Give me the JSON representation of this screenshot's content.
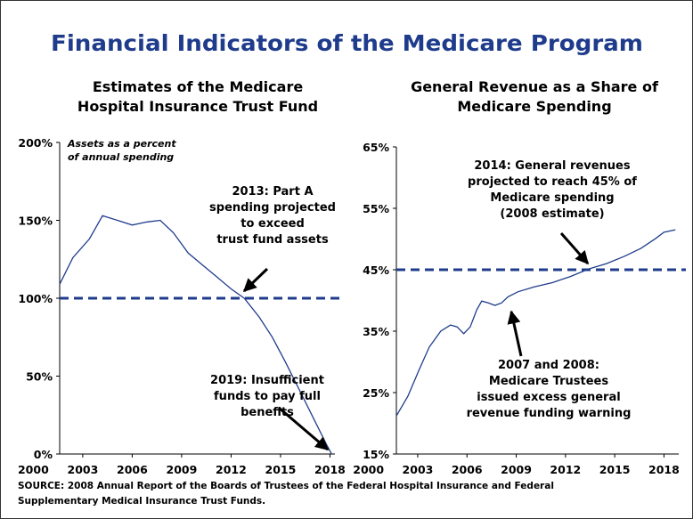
{
  "title": "Financial Indicators of the Medicare Program",
  "source": [
    "SOURCE: 2008 Annual Report of the Boards of Trustees of the Federal Hospital Insurance and Federal",
    "Supplementary Medical Insurance Trust Funds."
  ],
  "chart_data": [
    {
      "type": "line",
      "title": [
        "Estimates of the Medicare",
        "Hospital Insurance Trust Fund"
      ],
      "axis_note": [
        "Assets as a percent",
        "of annual spending"
      ],
      "x": [
        2001.6,
        2002.4,
        2003.4,
        2004.2,
        2005.1,
        2006,
        2006.9,
        2007.7,
        2008.5,
        2009.4,
        2010.3,
        2011.1,
        2012,
        2012.8,
        2013.7,
        2014.5,
        2015.3,
        2016.2,
        2017,
        2017.8,
        2018.1
      ],
      "values": [
        109,
        126,
        138,
        153,
        150,
        147,
        149,
        150,
        142,
        129,
        121,
        114,
        106,
        100,
        88,
        75,
        59,
        40,
        23,
        6,
        0
      ],
      "color": "#1f3c8c",
      "reference_line": 100,
      "xlim": [
        2001.6,
        2018.3
      ],
      "xticks": [
        2000,
        2003,
        2006,
        2009,
        2012,
        2015,
        2018
      ],
      "ylim": [
        0,
        200
      ],
      "yticks": [
        {
          "value": 0,
          "label": "0%"
        },
        {
          "value": 50,
          "label": "50%"
        },
        {
          "value": 100,
          "label": "100%"
        },
        {
          "value": 150,
          "label": "150%"
        },
        {
          "value": 200,
          "label": "200%"
        }
      ],
      "annotations": [
        [
          "2013:  Part A",
          "spending projected",
          "to exceed",
          "trust fund assets"
        ],
        [
          "2019:  Insufficient",
          "funds to pay full",
          "benefits"
        ]
      ]
    },
    {
      "type": "line",
      "title": [
        "General Revenue as a Share of",
        "Medicare Spending"
      ],
      "x": [
        2001.7,
        2002.4,
        2003.1,
        2003.7,
        2004.4,
        2005,
        2005.4,
        2005.8,
        2006.2,
        2006.6,
        2006.9,
        2007.3,
        2007.7,
        2008.1,
        2008.5,
        2009.1,
        2010.1,
        2011.2,
        2012.3,
        2013.4,
        2014.5,
        2015.6,
        2016.6,
        2017.5,
        2018,
        2018.7
      ],
      "values": [
        21.2,
        24.4,
        28.8,
        32.4,
        35,
        36,
        35.7,
        34.6,
        35.7,
        38.5,
        39.9,
        39.6,
        39.2,
        39.6,
        40.6,
        41.4,
        42.2,
        42.9,
        43.9,
        45.1,
        46,
        47.2,
        48.5,
        50.1,
        51.1,
        51.5
      ],
      "color": "#1f3c8c",
      "reference_line": 45,
      "xlim": [
        2001.7,
        2018.9
      ],
      "xticks": [
        2000,
        2003,
        2006,
        2009,
        2012,
        2015,
        2018
      ],
      "ylim": [
        15,
        65
      ],
      "yticks": [
        {
          "value": 15,
          "label": "15%"
        },
        {
          "value": 25,
          "label": "25%"
        },
        {
          "value": 35,
          "label": "35%"
        },
        {
          "value": 45,
          "label": "45%"
        },
        {
          "value": 55,
          "label": "55%"
        },
        {
          "value": 65,
          "label": "65%"
        }
      ],
      "annotations": [
        [
          "2014:  General revenues",
          "projected to reach 45% of",
          "Medicare spending",
          "(2008 estimate)"
        ],
        [
          "2007 and 2008:",
          "Medicare Trustees",
          "issued excess general",
          "revenue funding warning"
        ]
      ]
    }
  ]
}
